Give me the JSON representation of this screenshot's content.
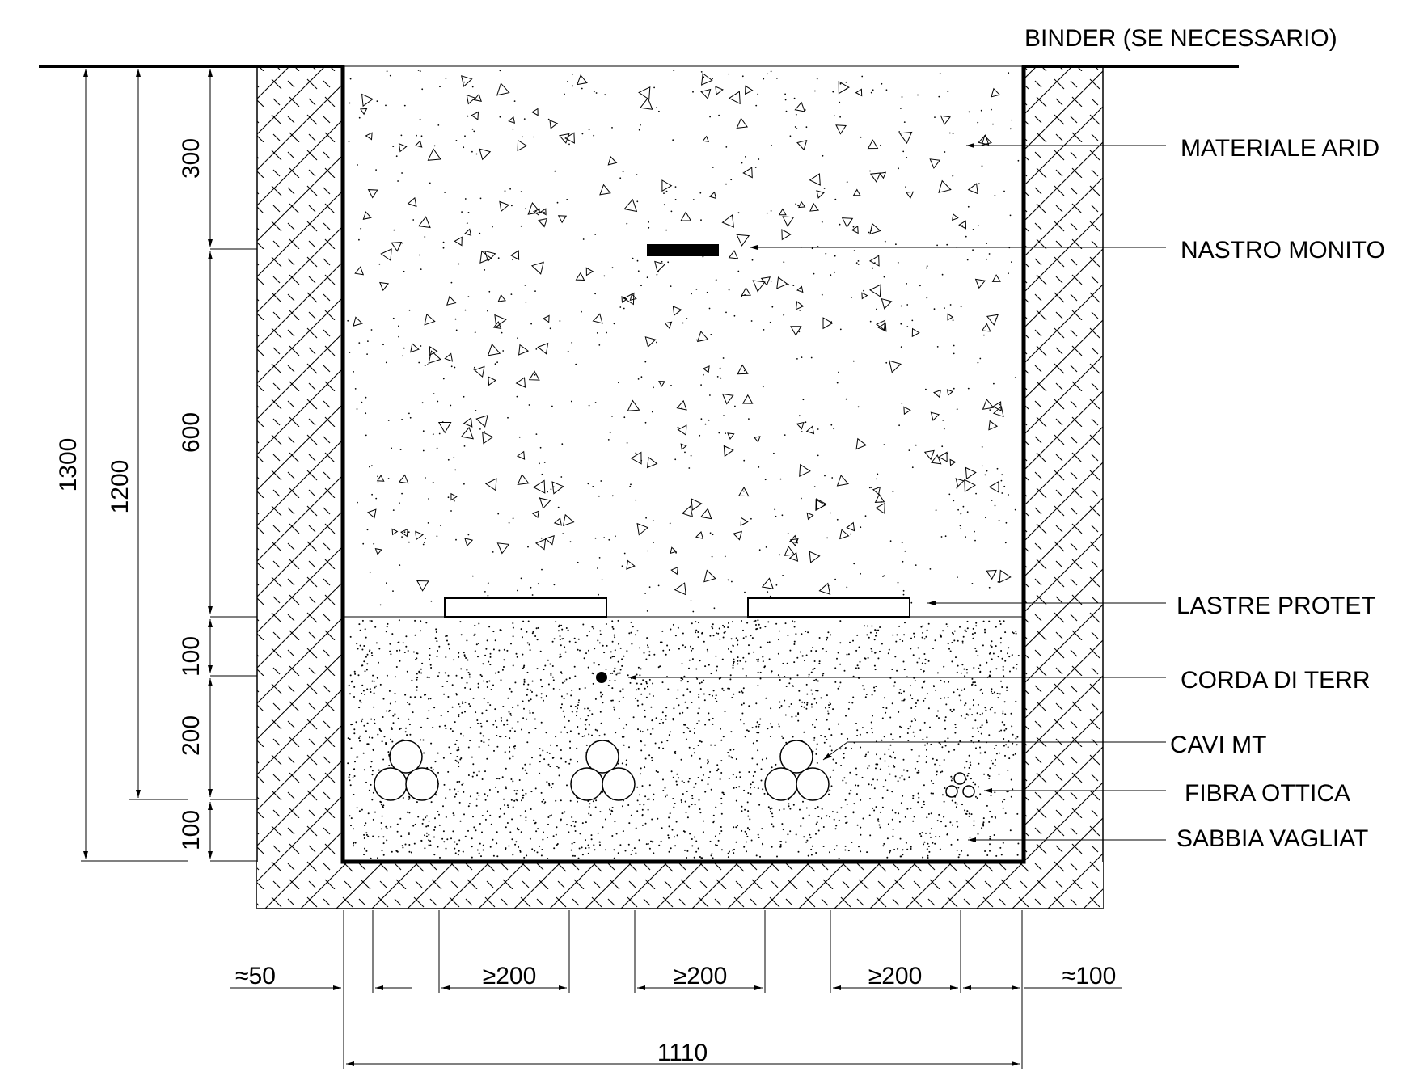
{
  "labels": {
    "binder": "BINDER (SE NECESSARIO)",
    "materiale_arido": "MATERIALE ARID",
    "nastro_monitor": "NASTRO MONITO",
    "lastre_protettive": "LASTRE PROTET",
    "corda_di_terra": "CORDA DI TERR",
    "cavi_mt": "CAVI MT",
    "fibra_ottica": "FIBRA OTTICA",
    "sabbia_vagliata": "SABBIA VAGLIAT"
  },
  "dimensions": {
    "vertical": {
      "total_depth": "1300",
      "cable_depth": "1200",
      "fill_top": "300",
      "fill_mid": "600",
      "sand_top": "100",
      "sand_mid": "200",
      "sand_bottom": "100"
    },
    "horizontal": {
      "left_offset": "≈50",
      "spacing_1": "≥200",
      "spacing_2": "≥200",
      "spacing_3": "≥200",
      "right_offset": "≈100",
      "trench_width": "1110"
    }
  }
}
